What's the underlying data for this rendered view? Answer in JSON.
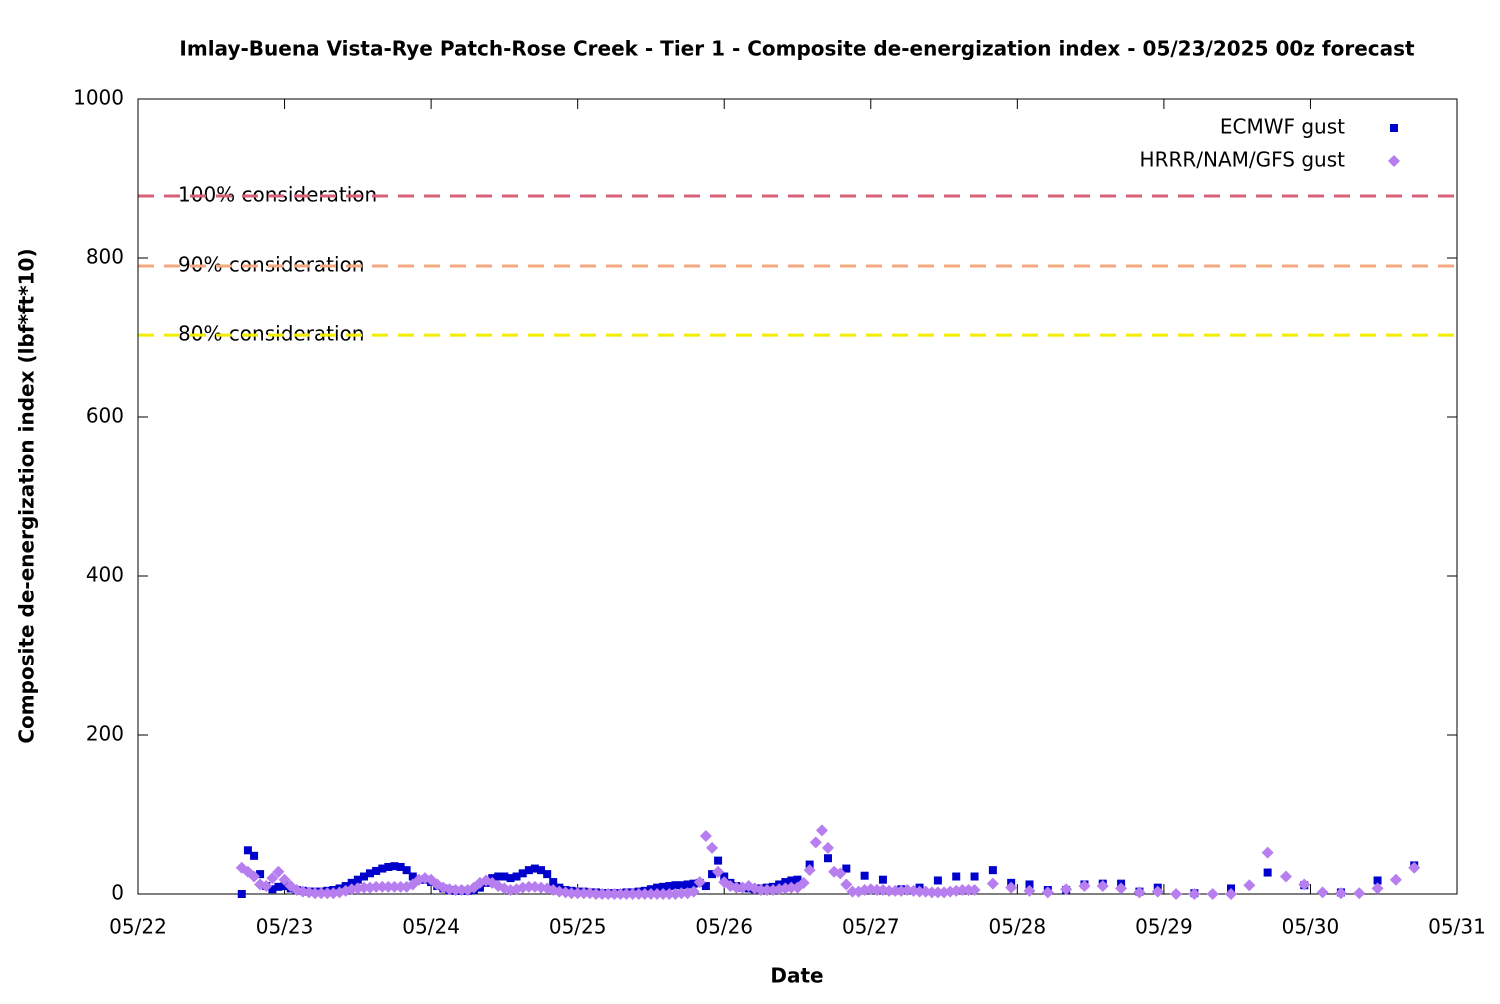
{
  "chart_data": {
    "type": "scatter",
    "title": "Imlay-Buena Vista-Rye Patch-Rose Creek - Tier 1 - Composite de-energization index - 05/23/2025 00z forecast",
    "xlabel": "Date",
    "ylabel": "Composite de-energization index (lbf*ft*10)",
    "xlim": [
      22,
      31
    ],
    "xticks": [
      {
        "value": 22,
        "label": "05/22"
      },
      {
        "value": 23,
        "label": "05/23"
      },
      {
        "value": 24,
        "label": "05/24"
      },
      {
        "value": 25,
        "label": "05/25"
      },
      {
        "value": 26,
        "label": "05/26"
      },
      {
        "value": 27,
        "label": "05/27"
      },
      {
        "value": 28,
        "label": "05/28"
      },
      {
        "value": 29,
        "label": "05/29"
      },
      {
        "value": 30,
        "label": "05/30"
      },
      {
        "value": 31,
        "label": "05/31"
      }
    ],
    "ylim": [
      0,
      1000
    ],
    "yticks": [
      0,
      200,
      400,
      600,
      800,
      1000
    ],
    "legend": "top-right",
    "reference_lines": [
      {
        "value": 878,
        "label": "100% consideration",
        "color": "#d9607a"
      },
      {
        "value": 790,
        "label": "90% consideration",
        "color": "#f4a97f"
      },
      {
        "value": 703,
        "label": "80% consideration",
        "color": "#f2ee00"
      }
    ],
    "series": [
      {
        "name": "ECMWF gust",
        "color": "#0000cc",
        "marker": "square",
        "x": [
          22.708,
          22.75,
          22.792,
          22.833,
          22.875,
          22.917,
          22.958,
          23.0,
          23.042,
          23.083,
          23.125,
          23.167,
          23.208,
          23.25,
          23.292,
          23.333,
          23.375,
          23.417,
          23.458,
          23.5,
          23.542,
          23.583,
          23.625,
          23.667,
          23.708,
          23.75,
          23.792,
          23.833,
          23.875,
          23.917,
          23.958,
          24.0,
          24.042,
          24.083,
          24.125,
          24.167,
          24.208,
          24.25,
          24.292,
          24.333,
          24.375,
          24.417,
          24.458,
          24.5,
          24.542,
          24.583,
          24.625,
          24.667,
          24.708,
          24.75,
          24.792,
          24.833,
          24.875,
          24.917,
          24.958,
          25.0,
          25.042,
          25.083,
          25.125,
          25.167,
          25.208,
          25.25,
          25.292,
          25.333,
          25.375,
          25.417,
          25.458,
          25.5,
          25.542,
          25.583,
          25.625,
          25.667,
          25.708,
          25.75,
          25.792,
          25.833,
          25.875,
          25.917,
          25.958,
          26.0,
          26.042,
          26.083,
          26.125,
          26.167,
          26.208,
          26.25,
          26.292,
          26.333,
          26.375,
          26.417,
          26.458,
          26.5,
          26.583,
          26.708,
          26.833,
          26.958,
          27.083,
          27.208,
          27.333,
          27.458,
          27.583,
          27.708,
          27.833,
          27.958,
          28.083,
          28.208,
          28.333,
          28.458,
          28.583,
          28.708,
          28.833,
          28.958,
          29.208,
          29.458,
          29.708,
          29.958,
          30.208,
          30.458,
          30.708
        ],
        "values": [
          0,
          55,
          48,
          25,
          10,
          6,
          9,
          10,
          7,
          5,
          4,
          3,
          3,
          3,
          4,
          5,
          7,
          10,
          14,
          18,
          22,
          26,
          29,
          32,
          34,
          35,
          34,
          30,
          22,
          18,
          18,
          15,
          10,
          7,
          5,
          4,
          4,
          4,
          5,
          8,
          14,
          20,
          22,
          22,
          20,
          22,
          26,
          30,
          32,
          30,
          25,
          15,
          8,
          5,
          4,
          3,
          3,
          2,
          2,
          1,
          1,
          1,
          1,
          2,
          2,
          3,
          4,
          6,
          8,
          9,
          10,
          11,
          11,
          12,
          13,
          14,
          10,
          25,
          42,
          22,
          14,
          10,
          8,
          7,
          6,
          7,
          8,
          9,
          12,
          15,
          17,
          18,
          37,
          45,
          32,
          23,
          18,
          6,
          8,
          17,
          22,
          22,
          30,
          14,
          12,
          5,
          5,
          12,
          13,
          13,
          3,
          8,
          1,
          7,
          27,
          11,
          2,
          17,
          36
        ]
      },
      {
        "name": "HRRR/NAM/GFS gust",
        "color": "#b77ef0",
        "marker": "diamond",
        "x": [
          22.708,
          22.75,
          22.792,
          22.833,
          22.875,
          22.917,
          22.958,
          23.0,
          23.042,
          23.083,
          23.125,
          23.167,
          23.208,
          23.25,
          23.292,
          23.333,
          23.375,
          23.417,
          23.458,
          23.5,
          23.542,
          23.583,
          23.625,
          23.667,
          23.708,
          23.75,
          23.792,
          23.833,
          23.875,
          23.917,
          23.958,
          24.0,
          24.042,
          24.083,
          24.125,
          24.167,
          24.208,
          24.25,
          24.292,
          24.333,
          24.375,
          24.417,
          24.458,
          24.5,
          24.542,
          24.583,
          24.625,
          24.667,
          24.708,
          24.75,
          24.792,
          24.833,
          24.875,
          24.917,
          24.958,
          25.0,
          25.042,
          25.083,
          25.125,
          25.167,
          25.208,
          25.25,
          25.292,
          25.333,
          25.375,
          25.417,
          25.458,
          25.5,
          25.542,
          25.583,
          25.625,
          25.667,
          25.708,
          25.75,
          25.792,
          25.833,
          25.875,
          25.917,
          25.958,
          26.0,
          26.042,
          26.083,
          26.125,
          26.167,
          26.208,
          26.25,
          26.292,
          26.333,
          26.375,
          26.417,
          26.458,
          26.5,
          26.542,
          26.583,
          26.625,
          26.667,
          26.708,
          26.75,
          26.792,
          26.833,
          26.875,
          26.917,
          26.958,
          27.0,
          27.042,
          27.083,
          27.125,
          27.167,
          27.208,
          27.25,
          27.292,
          27.333,
          27.375,
          27.417,
          27.458,
          27.5,
          27.542,
          27.583,
          27.625,
          27.667,
          27.708,
          27.833,
          27.958,
          28.083,
          28.208,
          28.333,
          28.458,
          28.583,
          28.708,
          28.833,
          28.958,
          29.083,
          29.208,
          29.333,
          29.458,
          29.583,
          29.708,
          29.833,
          29.958,
          30.083,
          30.208,
          30.333,
          30.458,
          30.583,
          30.708
        ],
        "values": [
          33,
          28,
          22,
          12,
          10,
          20,
          28,
          18,
          10,
          5,
          3,
          2,
          1,
          1,
          1,
          1,
          2,
          4,
          6,
          7,
          8,
          8,
          9,
          9,
          9,
          9,
          9,
          9,
          12,
          18,
          20,
          18,
          12,
          8,
          6,
          5,
          5,
          5,
          8,
          14,
          17,
          14,
          10,
          7,
          5,
          6,
          8,
          9,
          9,
          8,
          7,
          5,
          3,
          2,
          1,
          1,
          1,
          1,
          0,
          0,
          0,
          0,
          0,
          0,
          0,
          0,
          0,
          0,
          0,
          0,
          0,
          0,
          1,
          1,
          3,
          15,
          73,
          58,
          28,
          15,
          10,
          8,
          8,
          10,
          7,
          5,
          5,
          5,
          6,
          7,
          8,
          8,
          14,
          30,
          65,
          80,
          58,
          28,
          26,
          12,
          3,
          3,
          5,
          6,
          5,
          5,
          4,
          4,
          4,
          5,
          4,
          3,
          3,
          2,
          2,
          2,
          3,
          4,
          5,
          5,
          5,
          13,
          8,
          4,
          2,
          6,
          10,
          10,
          7,
          2,
          3,
          0,
          0,
          0,
          0,
          11,
          52,
          22,
          12,
          2,
          1,
          1,
          7,
          18,
          33
        ]
      }
    ]
  }
}
